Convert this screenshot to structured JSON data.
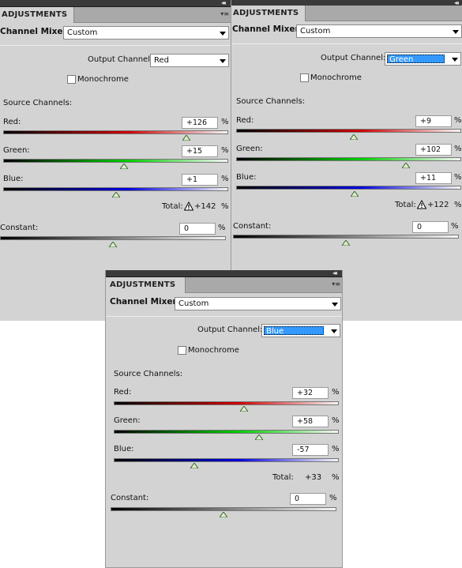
{
  "app": {
    "tab_label": "ADJUSTMENTS",
    "collapse_glyph": "◂◂",
    "panel_menu_glyph": "▾≡",
    "adjustment_name": "Channel Mixer",
    "preset_value": "Custom",
    "output_channel_label": "Output Channel:",
    "monochrome_label": "Monochrome",
    "source_channels_label": "Source Channels:",
    "red_label": "Red:",
    "green_label": "Green:",
    "blue_label": "Blue:",
    "total_label": "Total:",
    "constant_label": "Constant:",
    "percent": "%",
    "monochrome_checked": false
  },
  "panels": [
    {
      "output_channel": "Red",
      "output_highlighted": false,
      "red": {
        "text": "+126",
        "value": 126
      },
      "green": {
        "text": "+15",
        "value": 15
      },
      "blue": {
        "text": "+1",
        "value": 1
      },
      "total": "+142",
      "total_warning": true,
      "constant": {
        "text": "0",
        "value": 0
      }
    },
    {
      "output_channel": "Green",
      "output_highlighted": true,
      "red": {
        "text": "+9",
        "value": 9
      },
      "green": {
        "text": "+102",
        "value": 102
      },
      "blue": {
        "text": "+11",
        "value": 11
      },
      "total": "+122",
      "total_warning": true,
      "constant": {
        "text": "0",
        "value": 0
      }
    },
    {
      "output_channel": "Blue",
      "output_highlighted": true,
      "red": {
        "text": "+32",
        "value": 32
      },
      "green": {
        "text": "+58",
        "value": 58
      },
      "blue": {
        "text": "-57",
        "value": -57
      },
      "total": "+33",
      "total_warning": false,
      "constant": {
        "text": "0",
        "value": 0
      }
    }
  ],
  "colors": {
    "panel_bg": "#d3d3d3",
    "highlight": "#3399ff",
    "red_channel": "#cc0000",
    "green_channel": "#00cc00",
    "blue_channel": "#0000dd"
  }
}
